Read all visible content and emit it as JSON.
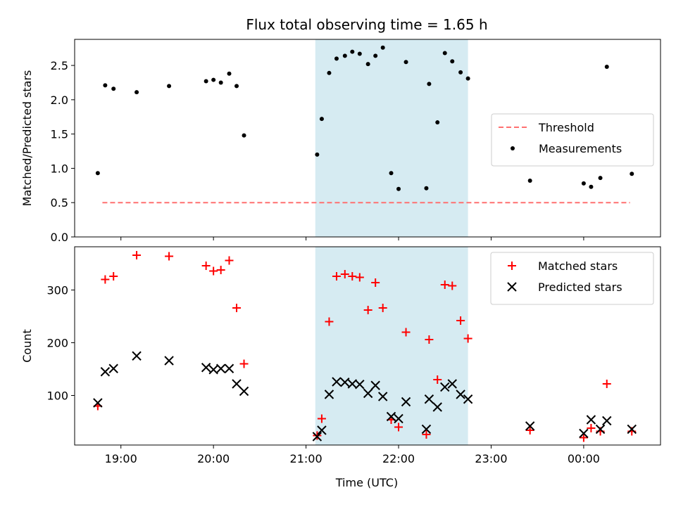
{
  "chart_data": {
    "type": "scatter",
    "title": "Flux total observing time = 1.65 h",
    "shared_x": {
      "label": "Time (UTC)",
      "unit": "hours since 00:00 UTC of first night",
      "range": [
        18.5,
        24.83
      ],
      "ticks": [
        {
          "value": 19,
          "label": "19:00"
        },
        {
          "value": 20,
          "label": "20:00"
        },
        {
          "value": 21,
          "label": "21:00"
        },
        {
          "value": 22,
          "label": "22:00"
        },
        {
          "value": 23,
          "label": "23:00"
        },
        {
          "value": 24,
          "label": "00:00"
        }
      ]
    },
    "highlight_span": {
      "x": [
        21.1,
        22.75
      ],
      "color": "#add8e6"
    },
    "panels": [
      {
        "ylabel": "Matched/Predicted stars",
        "ylim": [
          0,
          2.88
        ],
        "yticks": [
          0.0,
          0.5,
          1.0,
          1.5,
          2.0,
          2.5
        ],
        "ytick_labels": [
          "0.0",
          "0.5",
          "1.0",
          "1.5",
          "2.0",
          "2.5"
        ],
        "legend_position": "center-right",
        "series": [
          {
            "name": "Threshold",
            "kind": "line",
            "style": "dashed",
            "color": "#ff7070",
            "x": [
              18.8,
              24.5
            ],
            "y": [
              0.5,
              0.5
            ]
          },
          {
            "name": "Measurements",
            "kind": "dot",
            "color": "#000000",
            "x": [
              18.75,
              18.83,
              18.92,
              19.17,
              19.52,
              19.92,
              20.0,
              20.08,
              20.17,
              20.25,
              20.33,
              21.12,
              21.17,
              21.25,
              21.33,
              21.42,
              21.5,
              21.58,
              21.67,
              21.75,
              21.83,
              21.92,
              22.0,
              22.08,
              22.3,
              22.33,
              22.42,
              22.5,
              22.58,
              22.67,
              22.75,
              23.42,
              24.0,
              24.08,
              24.18,
              24.25,
              24.52
            ],
            "y": [
              0.93,
              2.21,
              2.16,
              2.11,
              2.2,
              2.27,
              2.29,
              2.25,
              2.38,
              2.2,
              1.48,
              1.2,
              1.72,
              2.39,
              2.6,
              2.64,
              2.7,
              2.67,
              2.52,
              2.64,
              2.76,
              0.93,
              0.7,
              2.55,
              0.71,
              2.23,
              1.67,
              2.68,
              2.56,
              2.4,
              2.31,
              0.82,
              0.78,
              0.73,
              0.86,
              2.48,
              0.92
            ]
          }
        ]
      },
      {
        "ylabel": "Count",
        "ylim": [
          6,
          382
        ],
        "yticks": [
          100,
          200,
          300
        ],
        "ytick_labels": [
          "100",
          "200",
          "300"
        ],
        "legend_position": "upper-right",
        "series": [
          {
            "name": "Matched stars",
            "kind": "plus",
            "color": "#ff0000",
            "x": [
              18.75,
              18.83,
              18.92,
              19.17,
              19.52,
              19.92,
              20.0,
              20.08,
              20.17,
              20.25,
              20.33,
              21.12,
              21.17,
              21.25,
              21.33,
              21.42,
              21.5,
              21.58,
              21.67,
              21.75,
              21.83,
              21.92,
              22.0,
              22.08,
              22.3,
              22.33,
              22.42,
              22.5,
              22.58,
              22.67,
              22.75,
              23.42,
              24.0,
              24.08,
              24.18,
              24.25,
              24.52
            ],
            "y": [
              80,
              320,
              326,
              366,
              364,
              346,
              336,
              338,
              356,
              266,
              160,
              24,
              56,
              240,
              326,
              330,
              326,
              324,
              262,
              314,
              266,
              54,
              40,
              220,
              26,
              206,
              130,
              310,
              308,
              242,
              208,
              34,
              20,
              38,
              32,
              122,
              32
            ]
          },
          {
            "name": "Predicted stars",
            "kind": "x",
            "color": "#000000",
            "x": [
              18.75,
              18.83,
              18.92,
              19.17,
              19.52,
              19.92,
              20.0,
              20.08,
              20.17,
              20.25,
              20.33,
              21.12,
              21.17,
              21.25,
              21.33,
              21.42,
              21.5,
              21.58,
              21.67,
              21.75,
              21.83,
              21.92,
              22.0,
              22.08,
              22.3,
              22.33,
              22.42,
              22.5,
              22.58,
              22.67,
              22.75,
              23.42,
              24.0,
              24.08,
              24.18,
              24.25,
              24.52
            ],
            "y": [
              86,
              145,
              151,
              175,
              166,
              153,
              149,
              151,
              151,
              122,
              108,
              22,
              34,
              102,
              126,
              125,
              122,
              121,
              104,
              119,
              98,
              60,
              56,
              88,
              36,
              93,
              78,
              116,
              122,
              102,
              93,
              42,
              28,
              54,
              36,
              52,
              36
            ]
          }
        ]
      }
    ]
  }
}
